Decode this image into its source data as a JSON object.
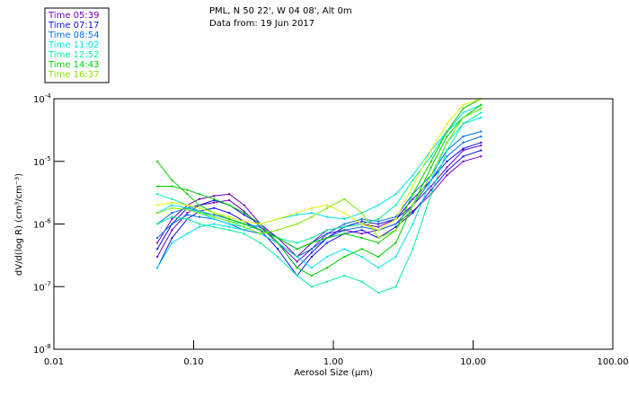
{
  "header": {
    "location": "PML, N 50 22', W 04 08', Alt 0m",
    "date": "Data from: 19 Jun 2017"
  },
  "chart_data": {
    "type": "line",
    "title": "PML, N 50 22', W 04 08', Alt 0m",
    "subtitle": "Data from: 19 Jun 2017",
    "xlabel": "Aerosol Size (µm)",
    "ylabel": "dV/d(log R) (cm³/cm⁻³)",
    "xscale": "log",
    "yscale": "log",
    "xlim": [
      0.01,
      100
    ],
    "ylim": [
      1e-08,
      0.0001
    ],
    "xticks": [
      {
        "value": 0.01,
        "label": "0.01"
      },
      {
        "value": 0.1,
        "label": "0.10"
      },
      {
        "value": 1,
        "label": "1.00"
      },
      {
        "value": 10,
        "label": "10.00"
      },
      {
        "value": 100,
        "label": "100.00"
      }
    ],
    "yticks": [
      {
        "value": 0.0001,
        "base": "10",
        "exp": "-4"
      },
      {
        "value": 1e-05,
        "base": "10",
        "exp": "-5"
      },
      {
        "value": 1e-06,
        "base": "10",
        "exp": "-6"
      },
      {
        "value": 1e-07,
        "base": "10",
        "exp": "-7"
      },
      {
        "value": 1e-08,
        "base": "10",
        "exp": "-8"
      }
    ],
    "grid": false,
    "legend_position": "top-left",
    "legend": [
      {
        "label": "Time 05:39",
        "color": "#7000c0"
      },
      {
        "label": "Time 07:17",
        "color": "#1010e0"
      },
      {
        "label": "Time 08:54",
        "color": "#0070f0"
      },
      {
        "label": "Time 11:02",
        "color": "#00e0f0"
      },
      {
        "label": "Time 12:52",
        "color": "#00f0a0"
      },
      {
        "label": "Time 14:43",
        "color": "#00d000"
      },
      {
        "label": "Time 16:37",
        "color": "#80e800"
      }
    ],
    "x": [
      0.055,
      0.07,
      0.09,
      0.11,
      0.14,
      0.18,
      0.23,
      0.3,
      0.4,
      0.55,
      0.7,
      0.9,
      1.2,
      1.6,
      2.1,
      2.8,
      3.7,
      5,
      6.5,
      8.5,
      11.4
    ],
    "series": [
      {
        "name": "05:39 a",
        "color": "#7000c0",
        "values": [
          5e-07,
          1.2e-06,
          2e-06,
          2.5e-06,
          2.8e-06,
          3e-06,
          2e-06,
          1e-06,
          6e-07,
          3e-07,
          5e-07,
          8e-07,
          9e-07,
          1e-06,
          9e-07,
          1.2e-06,
          2e-06,
          4e-06,
          8e-06,
          1.5e-05,
          1.8e-05
        ]
      },
      {
        "name": "05:39 b",
        "color": "#7000c0",
        "values": [
          3e-07,
          8e-07,
          1.5e-06,
          2e-06,
          2.2e-06,
          2.4e-06,
          1.6e-06,
          9e-07,
          5e-07,
          2.5e-07,
          4e-07,
          7e-07,
          8e-07,
          7e-07,
          8e-07,
          1e-06,
          1.6e-06,
          3e-06,
          6e-06,
          1e-05,
          1.2e-05
        ]
      },
      {
        "name": "07:17 a",
        "color": "#1010e0",
        "values": [
          4e-07,
          1e-06,
          1.8e-06,
          2e-06,
          2.4e-06,
          2e-06,
          1.4e-06,
          1e-06,
          5e-07,
          2e-07,
          3.5e-07,
          6e-07,
          9e-07,
          1.1e-06,
          1e-06,
          1.2e-06,
          2.5e-06,
          5e-06,
          1e-05,
          1.6e-05,
          2e-05
        ]
      },
      {
        "name": "07:17 b",
        "color": "#1010e0",
        "values": [
          2e-07,
          6e-07,
          1.2e-06,
          1.6e-06,
          1.8e-06,
          1.5e-06,
          1.1e-06,
          8e-07,
          4e-07,
          1.5e-07,
          3e-07,
          5e-07,
          7e-07,
          8e-07,
          6e-07,
          9e-07,
          1.5e-06,
          3.5e-06,
          7e-06,
          1.2e-05,
          1.5e-05
        ]
      },
      {
        "name": "08:54 a",
        "color": "#0070f0",
        "values": [
          1e-06,
          1.5e-06,
          1.8e-06,
          1.6e-06,
          1.4e-06,
          1.2e-06,
          1e-06,
          9e-07,
          6e-07,
          4e-07,
          5e-07,
          7e-07,
          1e-06,
          1.2e-06,
          1.1e-06,
          1.3e-06,
          3e-06,
          6e-06,
          1.5e-05,
          2.5e-05,
          3e-05
        ]
      },
      {
        "name": "08:54 b",
        "color": "#0070f0",
        "values": [
          6e-07,
          1e-06,
          1.4e-06,
          1.3e-06,
          1.2e-06,
          1e-06,
          8e-07,
          7e-07,
          5e-07,
          3e-07,
          4e-07,
          6e-07,
          8e-07,
          9e-07,
          8e-07,
          1e-06,
          2e-06,
          5e-06,
          1.2e-05,
          2e-05,
          2.5e-05
        ]
      },
      {
        "name": "11:02 a",
        "color": "#00e0f0",
        "values": [
          1.5e-06,
          2e-06,
          1.8e-06,
          1.5e-06,
          1.2e-06,
          1e-06,
          9e-07,
          7e-07,
          5e-07,
          3e-07,
          2e-07,
          3e-07,
          4e-07,
          3e-07,
          2e-07,
          3e-07,
          1e-06,
          5e-06,
          2e-05,
          4e-05,
          5e-05
        ]
      },
      {
        "name": "11:02 b",
        "color": "#00e0f0",
        "values": [
          2e-07,
          5e-07,
          7e-07,
          9e-07,
          1e-06,
          9e-07,
          8e-07,
          1e-06,
          1.2e-06,
          1.4e-06,
          1.5e-06,
          1.3e-06,
          1.2e-06,
          1.5e-06,
          2e-06,
          3e-06,
          6e-06,
          1.5e-05,
          3e-05,
          6e-05,
          8e-05
        ]
      },
      {
        "name": "12:52 a",
        "color": "#00f0a0",
        "values": [
          3e-06,
          2.5e-06,
          2e-06,
          1.6e-06,
          1.3e-06,
          1.1e-06,
          1e-06,
          8e-07,
          6e-07,
          5e-07,
          6e-07,
          8e-07,
          9e-07,
          1e-06,
          1.2e-06,
          2e-06,
          5e-06,
          1.2e-05,
          3e-05,
          5e-05,
          7e-05
        ]
      },
      {
        "name": "12:52 b",
        "color": "#00f0a0",
        "values": [
          1e-06,
          1.3e-06,
          1.2e-06,
          1e-06,
          9e-07,
          8e-07,
          7e-07,
          5e-07,
          3e-07,
          1.5e-07,
          1e-07,
          1.2e-07,
          1.5e-07,
          1.2e-07,
          8e-08,
          1e-07,
          4e-07,
          3e-06,
          1.5e-05,
          4e-05,
          6e-05
        ]
      },
      {
        "name": "14:43 a",
        "color": "#00d000",
        "values": [
          1e-05,
          5e-06,
          3e-06,
          2e-06,
          1.5e-06,
          1.2e-06,
          1e-06,
          8e-07,
          6e-07,
          4e-07,
          5e-07,
          6e-07,
          7e-07,
          6e-07,
          5e-07,
          8e-07,
          3e-06,
          1e-05,
          3e-05,
          7e-05,
          0.0001
        ]
      },
      {
        "name": "14:43 b",
        "color": "#00d000",
        "values": [
          4e-06,
          4e-06,
          3.5e-06,
          3e-06,
          2.5e-06,
          2e-06,
          1.5e-06,
          1e-06,
          5e-07,
          2e-07,
          1.5e-07,
          2e-07,
          3e-07,
          4e-07,
          3e-07,
          5e-07,
          2e-06,
          8e-06,
          2.5e-05,
          5e-05,
          8e-05
        ]
      },
      {
        "name": "16:37 a",
        "color": "#e0f000",
        "values": [
          2e-06,
          2.2e-06,
          2e-06,
          1.8e-06,
          1.5e-06,
          1.3e-06,
          1.1e-06,
          1e-06,
          1.2e-06,
          1.5e-06,
          1.8e-06,
          2e-06,
          1.5e-06,
          1e-06,
          8e-07,
          1.2e-06,
          4e-06,
          1.5e-05,
          4e-05,
          8e-05,
          0.0001
        ]
      },
      {
        "name": "16:37 b",
        "color": "#80e800",
        "values": [
          1.5e-06,
          1.8e-06,
          1.7e-06,
          1.5e-06,
          1.3e-06,
          1.1e-06,
          9e-07,
          7e-07,
          8e-07,
          1e-06,
          1.3e-06,
          1.8e-06,
          2.5e-06,
          1.5e-06,
          6e-07,
          8e-07,
          2e-06,
          6e-06,
          2e-05,
          5e-05,
          7e-05
        ]
      }
    ]
  }
}
